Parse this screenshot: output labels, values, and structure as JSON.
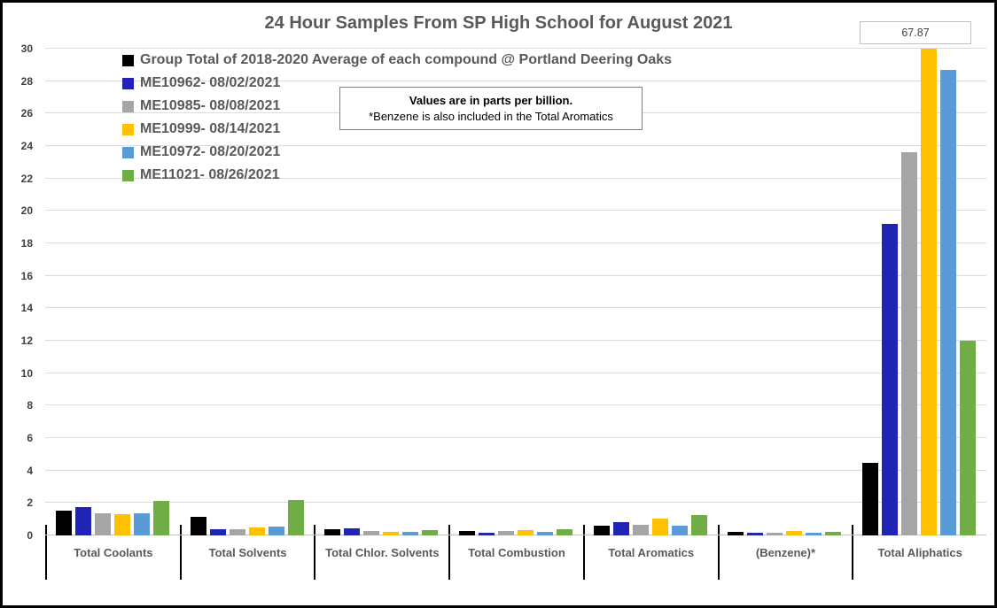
{
  "chart_data": {
    "type": "bar",
    "title": "24 Hour Samples From SP High School for August 2021",
    "ylabel": "",
    "xlabel": "",
    "ylim": [
      0,
      30
    ],
    "ytick_step": 2,
    "grid": true,
    "legend_position": "top-left-inside",
    "units_note": [
      "Values are in parts per billion.",
      "*Benzene is also included in the Total Aromatics"
    ],
    "categories": [
      "Total Coolants",
      "Total Solvents",
      "Total Chlor. Solvents",
      "Total Combustion",
      "Total Aromatics",
      "(Benzene)*",
      "Total Aliphatics"
    ],
    "series": [
      {
        "name": "Group Total of 2018-2020 Average of each compound @ Portland Deering Oaks",
        "color": "#000000",
        "values": [
          1.55,
          1.15,
          0.4,
          0.3,
          0.6,
          0.2,
          4.5
        ]
      },
      {
        "name": "ME10962- 08/02/2021",
        "color": "#1F24B4",
        "values": [
          1.75,
          0.4,
          0.45,
          0.15,
          0.8,
          0.15,
          19.2
        ]
      },
      {
        "name": "ME10985- 08/08/2021",
        "color": "#A5A5A5",
        "values": [
          1.35,
          0.4,
          0.25,
          0.25,
          0.65,
          0.15,
          23.6
        ]
      },
      {
        "name": "ME10999- 08/14/2021",
        "color": "#FFC000",
        "values": [
          1.3,
          0.5,
          0.2,
          0.35,
          1.05,
          0.25,
          67.87
        ]
      },
      {
        "name": "ME10972- 08/20/2021",
        "color": "#5B9BD5",
        "values": [
          1.35,
          0.55,
          0.2,
          0.2,
          0.6,
          0.15,
          28.7
        ]
      },
      {
        "name": "ME11021- 08/26/2021",
        "color": "#70AD47",
        "values": [
          2.15,
          2.2,
          0.35,
          0.4,
          1.25,
          0.2,
          12.0
        ]
      }
    ],
    "annotation": {
      "label": "67.87",
      "series": "ME10999- 08/14/2021",
      "category": "Total Aliphatics"
    }
  }
}
